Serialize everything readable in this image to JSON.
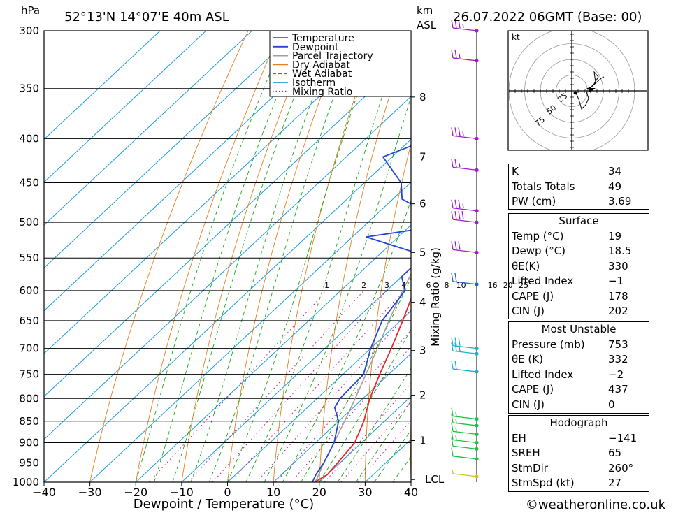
{
  "header": {
    "hpa_label": "hPa",
    "location": "52°13'N  14°07'E  40m  ASL",
    "km_label": "km",
    "asl_label": "ASL",
    "datetime": "26.07.2022  06GMT  (Base: 00)"
  },
  "footer": {
    "credit": "©weatheronline.co.uk"
  },
  "legend": [
    {
      "label": "Temperature",
      "color": "#e8282c",
      "style": "solid"
    },
    {
      "label": "Dewpoint",
      "color": "#2346d8",
      "style": "solid"
    },
    {
      "label": "Parcel Trajectory",
      "color": "#a0a0a0",
      "style": "solid"
    },
    {
      "label": "Dry Adiabat",
      "color": "#e87f1e",
      "style": "solid"
    },
    {
      "label": "Wet Adiabat",
      "color": "#18a818",
      "style": "dashed"
    },
    {
      "label": "Isotherm",
      "color": "#1c9ee0",
      "style": "solid"
    },
    {
      "label": "Mixing Ratio",
      "color": "#c0168c",
      "style": "dotted"
    }
  ],
  "chart_data": {
    "type": "line",
    "xlabel": "Dewpoint / Temperature (°C)",
    "ylabel_right": "Mixing Ratio (g/kg)",
    "xlim": [
      -40,
      40
    ],
    "pressure_range": [
      1000,
      300
    ],
    "x_ticks": [
      "−40",
      "−30",
      "−20",
      "−10",
      "0",
      "10",
      "20",
      "30",
      "40"
    ],
    "pressure_levels": [
      300,
      350,
      400,
      450,
      500,
      550,
      600,
      650,
      700,
      750,
      800,
      850,
      900,
      950,
      1000
    ],
    "km_levels": [
      {
        "label": "8",
        "p": 358
      },
      {
        "label": "7",
        "p": 420
      },
      {
        "label": "6",
        "p": 476
      },
      {
        "label": "5",
        "p": 542
      },
      {
        "label": "4",
        "p": 619
      },
      {
        "label": "3",
        "p": 704
      },
      {
        "label": "2",
        "p": 793
      },
      {
        "label": "1",
        "p": 895
      },
      {
        "label": "LCL",
        "p": 993
      }
    ],
    "mixing_ratio_labels": [
      "1",
      "2",
      "3",
      "4",
      "6",
      "8",
      "10",
      "16",
      "20",
      "25"
    ],
    "series": [
      {
        "name": "Temperature",
        "points": [
          [
            1000,
            19
          ],
          [
            980,
            20
          ],
          [
            950,
            19.5
          ],
          [
            900,
            18.5
          ],
          [
            850,
            15.5
          ],
          [
            800,
            11.5
          ],
          [
            750,
            8
          ],
          [
            700,
            4.5
          ],
          [
            650,
            0.5
          ],
          [
            600,
            -4
          ],
          [
            575,
            -6
          ],
          [
            550,
            -10
          ],
          [
            500,
            -14
          ],
          [
            470,
            -18
          ],
          [
            450,
            -20
          ],
          [
            400,
            -27
          ],
          [
            350,
            -37.5
          ],
          [
            330,
            -43
          ],
          [
            300,
            -49
          ]
        ]
      },
      {
        "name": "Dewpoint",
        "points": [
          [
            1000,
            18.5
          ],
          [
            980,
            17.5
          ],
          [
            950,
            16.5
          ],
          [
            900,
            14
          ],
          [
            850,
            10
          ],
          [
            820,
            6
          ],
          [
            800,
            5
          ],
          [
            750,
            4.5
          ],
          [
            700,
            0
          ],
          [
            650,
            -4
          ],
          [
            600,
            -6
          ],
          [
            578,
            -10
          ],
          [
            565,
            -10
          ],
          [
            550,
            -8
          ],
          [
            540,
            -14
          ],
          [
            520,
            -27
          ],
          [
            510,
            -18
          ],
          [
            495,
            -17
          ],
          [
            482,
            -22
          ],
          [
            470,
            -28
          ],
          [
            450,
            -32
          ],
          [
            420,
            -42
          ],
          [
            400,
            -36
          ],
          [
            385,
            -38
          ],
          [
            330,
            -52
          ],
          [
            300,
            -57
          ]
        ]
      },
      {
        "name": "Parcel Trajectory",
        "points": [
          [
            1000,
            19
          ],
          [
            993,
            18.8
          ],
          [
            950,
            16.5
          ],
          [
            900,
            14
          ],
          [
            850,
            11.3
          ],
          [
            800,
            8.3
          ],
          [
            750,
            5
          ],
          [
            700,
            1.5
          ],
          [
            650,
            -2.5
          ],
          [
            600,
            -6.5
          ],
          [
            550,
            -10.5
          ],
          [
            500,
            -15
          ],
          [
            450,
            -20.5
          ],
          [
            400,
            -26.5
          ],
          [
            350,
            -33.5
          ],
          [
            300,
            -41
          ]
        ]
      }
    ],
    "wind_barbs": [
      {
        "p": 300,
        "speed": 35
      },
      {
        "p": 325,
        "speed": 25
      },
      {
        "p": 400,
        "speed": 35
      },
      {
        "p": 435,
        "speed": 25
      },
      {
        "p": 485,
        "speed": 35
      },
      {
        "p": 500,
        "speed": 40
      },
      {
        "p": 542,
        "speed": 30
      },
      {
        "p": 590,
        "speed": 20
      },
      {
        "p": 700,
        "speed": 30
      },
      {
        "p": 710,
        "speed": 25
      },
      {
        "p": 745,
        "speed": 20
      },
      {
        "p": 845,
        "speed": 15
      },
      {
        "p": 860,
        "speed": 15
      },
      {
        "p": 880,
        "speed": 15
      },
      {
        "p": 900,
        "speed": 15
      },
      {
        "p": 915,
        "speed": 10
      },
      {
        "p": 940,
        "speed": 10
      },
      {
        "p": 985,
        "speed": 5
      }
    ]
  },
  "hodograph": {
    "unit_label": "kt",
    "ring_labels": [
      "25",
      "50",
      "75"
    ]
  },
  "indices": [
    {
      "key": "K",
      "value": "34"
    },
    {
      "key": "Totals Totals",
      "value": "49"
    },
    {
      "key": "PW (cm)",
      "value": "3.69"
    }
  ],
  "surface": {
    "title": "Surface",
    "rows": [
      {
        "key": "Temp (°C)",
        "value": "19"
      },
      {
        "key": "Dewp (°C)",
        "value": "18.5"
      },
      {
        "key": "θE(K)",
        "value": "330"
      },
      {
        "key": "Lifted Index",
        "value": "−1"
      },
      {
        "key": "CAPE (J)",
        "value": "178"
      },
      {
        "key": "CIN (J)",
        "value": "202"
      }
    ]
  },
  "most_unstable": {
    "title": "Most Unstable",
    "rows": [
      {
        "key": "Pressure (mb)",
        "value": "753"
      },
      {
        "key": "θE (K)",
        "value": "332"
      },
      {
        "key": "Lifted Index",
        "value": "−2"
      },
      {
        "key": "CAPE (J)",
        "value": "437"
      },
      {
        "key": "CIN (J)",
        "value": "0"
      }
    ]
  },
  "hodograph_table": {
    "title": "Hodograph",
    "rows": [
      {
        "key": "EH",
        "value": "−141"
      },
      {
        "key": "SREH",
        "value": "65"
      },
      {
        "key": "StmDir",
        "value": "260°"
      },
      {
        "key": "StmSpd (kt)",
        "value": "27"
      }
    ]
  }
}
